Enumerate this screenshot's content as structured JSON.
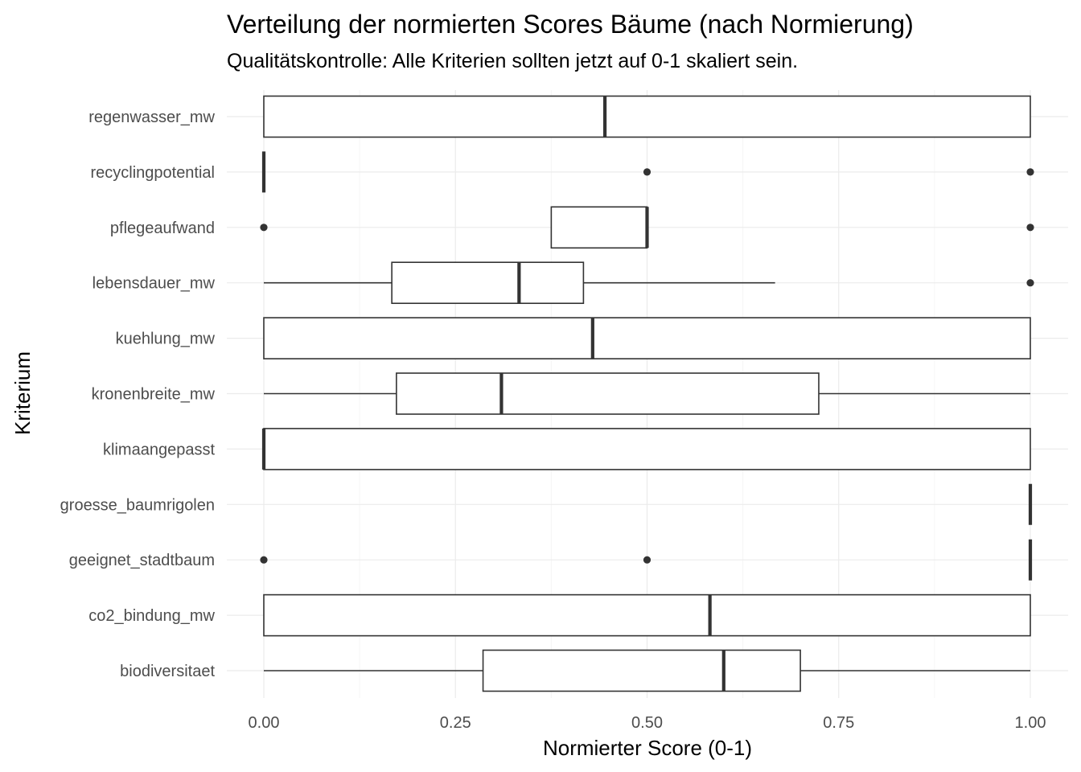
{
  "chart_data": {
    "type": "boxplot",
    "orientation": "horizontal",
    "title": "Verteilung der normierten Scores Bäume (nach Normierung)",
    "subtitle": "Qualitätskontrolle: Alle Kriterien sollten jetzt auf 0-1 skaliert sein.",
    "xlabel": "Normierter Score (0-1)",
    "ylabel": "Kriterium",
    "xlim": [
      -0.04,
      1.04
    ],
    "x_ticks": [
      {
        "value": 0,
        "label": "0.00"
      },
      {
        "value": 0.25,
        "label": "0.25"
      },
      {
        "value": 0.5,
        "label": "0.50"
      },
      {
        "value": 0.75,
        "label": "0.75"
      },
      {
        "value": 1,
        "label": "1.00"
      }
    ],
    "grid": true,
    "categories": [
      {
        "name": "regenwasser_mw",
        "lower": 0,
        "q1": 0,
        "median": 0.445,
        "q3": 1,
        "upper": 1,
        "outliers": []
      },
      {
        "name": "recyclingpotential",
        "lower": 0,
        "q1": 0,
        "median": 0,
        "q3": 0,
        "upper": 0,
        "outliers": [
          0.5,
          1
        ]
      },
      {
        "name": "pflegeaufwand",
        "lower": 0.375,
        "q1": 0.375,
        "median": 0.5,
        "q3": 0.5,
        "upper": 0.5,
        "outliers": [
          0,
          1
        ]
      },
      {
        "name": "lebensdauer_mw",
        "lower": 0,
        "q1": 0.167,
        "median": 0.333,
        "q3": 0.417,
        "upper": 0.667,
        "outliers": [
          1
        ]
      },
      {
        "name": "kuehlung_mw",
        "lower": 0,
        "q1": 0,
        "median": 0.429,
        "q3": 1,
        "upper": 1,
        "outliers": []
      },
      {
        "name": "kronenbreite_mw",
        "lower": 0,
        "q1": 0.173,
        "median": 0.31,
        "q3": 0.724,
        "upper": 1,
        "outliers": []
      },
      {
        "name": "klimaangepasst",
        "lower": 0,
        "q1": 0,
        "median": 0,
        "q3": 1,
        "upper": 1,
        "outliers": []
      },
      {
        "name": "groesse_baumrigolen",
        "lower": 1,
        "q1": 1,
        "median": 1,
        "q3": 1,
        "upper": 1,
        "outliers": []
      },
      {
        "name": "geeignet_stadtbaum",
        "lower": 1,
        "q1": 1,
        "median": 1,
        "q3": 1,
        "upper": 1,
        "outliers": [
          0,
          0.5
        ]
      },
      {
        "name": "co2_bindung_mw",
        "lower": 0,
        "q1": 0,
        "median": 0.582,
        "q3": 1,
        "upper": 1,
        "outliers": []
      },
      {
        "name": "biodiversitaet",
        "lower": 0,
        "q1": 0.286,
        "median": 0.6,
        "q3": 0.7,
        "upper": 1,
        "outliers": []
      }
    ]
  }
}
